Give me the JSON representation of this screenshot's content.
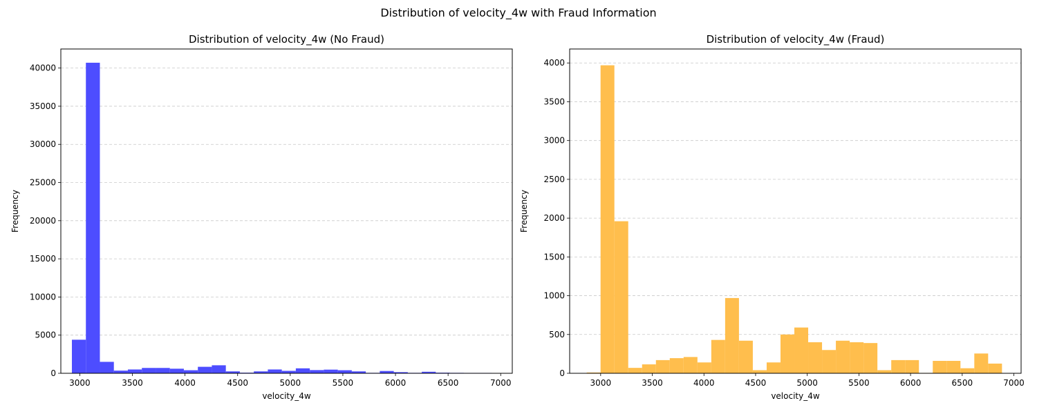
{
  "figure": {
    "suptitle": "Distribution of velocity_4w with Fraud Information"
  },
  "chart_data": [
    {
      "type": "bar",
      "title": "Distribution of velocity_4w (No Fraud)",
      "xlabel": "velocity_4w",
      "ylabel": "Frequency",
      "color": "#4d4dff",
      "grid": "y-dashed",
      "xlim": [
        2820,
        7110
      ],
      "ylim": [
        0,
        42500
      ],
      "xticks": [
        3000,
        3500,
        4000,
        4500,
        5000,
        5500,
        6000,
        6500,
        7000
      ],
      "yticks": [
        0,
        5000,
        10000,
        15000,
        20000,
        25000,
        30000,
        35000,
        40000
      ],
      "bins": [
        {
          "x0": 2925,
          "x1": 3058,
          "value": 4400
        },
        {
          "x0": 3058,
          "x1": 3191,
          "value": 40700
        },
        {
          "x0": 3191,
          "x1": 3324,
          "value": 1500
        },
        {
          "x0": 3324,
          "x1": 3457,
          "value": 350
        },
        {
          "x0": 3457,
          "x1": 3590,
          "value": 500
        },
        {
          "x0": 3590,
          "x1": 3723,
          "value": 700
        },
        {
          "x0": 3723,
          "x1": 3856,
          "value": 700
        },
        {
          "x0": 3856,
          "x1": 3989,
          "value": 600
        },
        {
          "x0": 3989,
          "x1": 4122,
          "value": 400
        },
        {
          "x0": 4122,
          "x1": 4255,
          "value": 850
        },
        {
          "x0": 4255,
          "x1": 4388,
          "value": 1050
        },
        {
          "x0": 4388,
          "x1": 4521,
          "value": 250
        },
        {
          "x0": 4521,
          "x1": 4654,
          "value": 80
        },
        {
          "x0": 4654,
          "x1": 4787,
          "value": 250
        },
        {
          "x0": 4787,
          "x1": 4920,
          "value": 500
        },
        {
          "x0": 4920,
          "x1": 5053,
          "value": 320
        },
        {
          "x0": 5053,
          "x1": 5186,
          "value": 650
        },
        {
          "x0": 5186,
          "x1": 5319,
          "value": 420
        },
        {
          "x0": 5319,
          "x1": 5452,
          "value": 480
        },
        {
          "x0": 5452,
          "x1": 5585,
          "value": 400
        },
        {
          "x0": 5585,
          "x1": 5718,
          "value": 250
        },
        {
          "x0": 5718,
          "x1": 5851,
          "value": 60
        },
        {
          "x0": 5851,
          "x1": 5984,
          "value": 300
        },
        {
          "x0": 5984,
          "x1": 6117,
          "value": 150
        },
        {
          "x0": 6117,
          "x1": 6250,
          "value": 60
        },
        {
          "x0": 6250,
          "x1": 6383,
          "value": 200
        },
        {
          "x0": 6383,
          "x1": 6516,
          "value": 80
        },
        {
          "x0": 6516,
          "x1": 6649,
          "value": 60
        },
        {
          "x0": 6649,
          "x1": 6782,
          "value": 50
        },
        {
          "x0": 6782,
          "x1": 6915,
          "value": 50
        }
      ]
    },
    {
      "type": "bar",
      "title": "Distribution of velocity_4w (Fraud)",
      "xlabel": "velocity_4w",
      "ylabel": "Frequency",
      "color": "#ffbe4d",
      "grid": "y-dashed",
      "xlim": [
        2700,
        7070
      ],
      "ylim": [
        0,
        4180
      ],
      "xticks": [
        3000,
        3500,
        4000,
        4500,
        5000,
        5500,
        6000,
        6500,
        7000
      ],
      "yticks": [
        0,
        500,
        1000,
        1500,
        2000,
        2500,
        3000,
        3500,
        4000
      ],
      "bins": [
        {
          "x0": 2865,
          "x1": 2999,
          "value": 10
        },
        {
          "x0": 2999,
          "x1": 3133,
          "value": 3970
        },
        {
          "x0": 3133,
          "x1": 3267,
          "value": 1960
        },
        {
          "x0": 3267,
          "x1": 3401,
          "value": 70
        },
        {
          "x0": 3401,
          "x1": 3535,
          "value": 115
        },
        {
          "x0": 3535,
          "x1": 3669,
          "value": 170
        },
        {
          "x0": 3669,
          "x1": 3803,
          "value": 195
        },
        {
          "x0": 3803,
          "x1": 3937,
          "value": 210
        },
        {
          "x0": 3937,
          "x1": 4071,
          "value": 140
        },
        {
          "x0": 4071,
          "x1": 4205,
          "value": 430
        },
        {
          "x0": 4205,
          "x1": 4339,
          "value": 970
        },
        {
          "x0": 4339,
          "x1": 4473,
          "value": 420
        },
        {
          "x0": 4473,
          "x1": 4607,
          "value": 40
        },
        {
          "x0": 4607,
          "x1": 4741,
          "value": 140
        },
        {
          "x0": 4741,
          "x1": 4875,
          "value": 500
        },
        {
          "x0": 4875,
          "x1": 5009,
          "value": 590
        },
        {
          "x0": 5009,
          "x1": 5143,
          "value": 400
        },
        {
          "x0": 5143,
          "x1": 5277,
          "value": 300
        },
        {
          "x0": 5277,
          "x1": 5411,
          "value": 420
        },
        {
          "x0": 5411,
          "x1": 5545,
          "value": 400
        },
        {
          "x0": 5545,
          "x1": 5679,
          "value": 390
        },
        {
          "x0": 5679,
          "x1": 5813,
          "value": 40
        },
        {
          "x0": 5813,
          "x1": 5947,
          "value": 170
        },
        {
          "x0": 5947,
          "x1": 6081,
          "value": 170
        },
        {
          "x0": 6081,
          "x1": 6215,
          "value": 5
        },
        {
          "x0": 6215,
          "x1": 6349,
          "value": 160
        },
        {
          "x0": 6349,
          "x1": 6483,
          "value": 160
        },
        {
          "x0": 6483,
          "x1": 6617,
          "value": 65
        },
        {
          "x0": 6617,
          "x1": 6751,
          "value": 255
        },
        {
          "x0": 6751,
          "x1": 6885,
          "value": 125
        }
      ]
    }
  ]
}
